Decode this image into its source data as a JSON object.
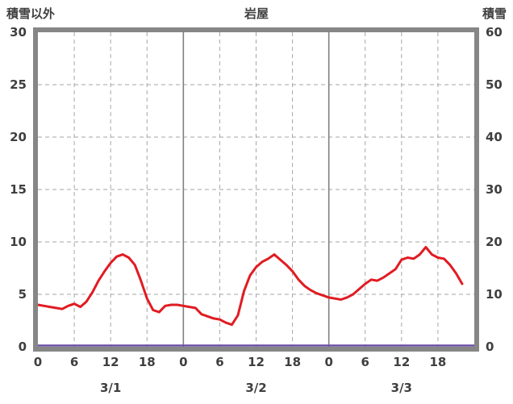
{
  "header": {
    "left_axis_title": "積雪以外",
    "title": "岩屋",
    "right_axis_title": "積雪"
  },
  "colors": {
    "frame": "#868686",
    "grid_solid": "#808080",
    "grid_dashed": "#a6a6a6",
    "red_line": "#e11b22",
    "purple_line": "#6a4fa3",
    "text": "#3f3f3f"
  },
  "chart_data": {
    "type": "line",
    "title": "岩屋",
    "left_axis": {
      "label": "積雪以外",
      "range": [
        0,
        30
      ],
      "ticks": [
        0,
        5,
        10,
        15,
        20,
        25,
        30
      ]
    },
    "right_axis": {
      "label": "積雪",
      "range": [
        0,
        60
      ],
      "ticks": [
        0,
        10,
        20,
        30,
        40,
        50,
        60
      ]
    },
    "x_axis": {
      "range_hours": [
        0,
        72
      ],
      "hour_ticks": [
        0,
        6,
        12,
        18,
        24,
        30,
        36,
        42,
        48,
        54,
        60,
        66
      ],
      "hour_tick_labels": [
        "0",
        "6",
        "12",
        "18",
        "0",
        "6",
        "12",
        "18",
        "0",
        "6",
        "12",
        "18"
      ],
      "day_boundary_hours": [
        24,
        48
      ],
      "day_labels": [
        "3/1",
        "3/2",
        "3/3"
      ],
      "day_label_hours": [
        12,
        36,
        60
      ]
    },
    "grid": true,
    "legend": "none",
    "series": [
      {
        "id": "red",
        "axis": "left",
        "color": "#e11b22",
        "x": [
          0,
          1,
          2,
          3,
          4,
          5,
          6,
          7,
          8,
          9,
          10,
          11,
          12,
          13,
          14,
          15,
          16,
          17,
          18,
          19,
          20,
          21,
          22,
          23,
          24,
          25,
          26,
          27,
          28,
          29,
          30,
          31,
          32,
          33,
          34,
          35,
          36,
          37,
          38,
          39,
          40,
          41,
          42,
          43,
          44,
          45,
          46,
          47,
          48,
          49,
          50,
          51,
          52,
          53,
          54,
          55,
          56,
          57,
          58,
          59,
          60,
          61,
          62,
          63,
          64,
          65,
          66,
          67,
          68,
          69,
          70
        ],
        "values": [
          4.0,
          3.9,
          3.8,
          3.7,
          3.6,
          3.9,
          4.1,
          3.8,
          4.3,
          5.2,
          6.3,
          7.2,
          8.0,
          8.6,
          8.8,
          8.5,
          7.8,
          6.3,
          4.6,
          3.5,
          3.3,
          3.9,
          4.0,
          4.0,
          3.9,
          3.8,
          3.7,
          3.1,
          2.9,
          2.7,
          2.6,
          2.3,
          2.1,
          3.0,
          5.3,
          6.8,
          7.6,
          8.1,
          8.4,
          8.8,
          8.3,
          7.8,
          7.2,
          6.4,
          5.8,
          5.4,
          5.1,
          4.9,
          4.7,
          4.6,
          4.5,
          4.7,
          5.0,
          5.5,
          6.0,
          6.4,
          6.3,
          6.6,
          7.0,
          7.4,
          8.3,
          8.5,
          8.4,
          8.8,
          9.5,
          8.8,
          8.5,
          8.4,
          7.8,
          7.0,
          6.0
        ]
      },
      {
        "id": "purple",
        "axis": "right",
        "color": "#6a4fa3",
        "x": [
          0,
          72
        ],
        "values": [
          0,
          0
        ]
      }
    ]
  }
}
